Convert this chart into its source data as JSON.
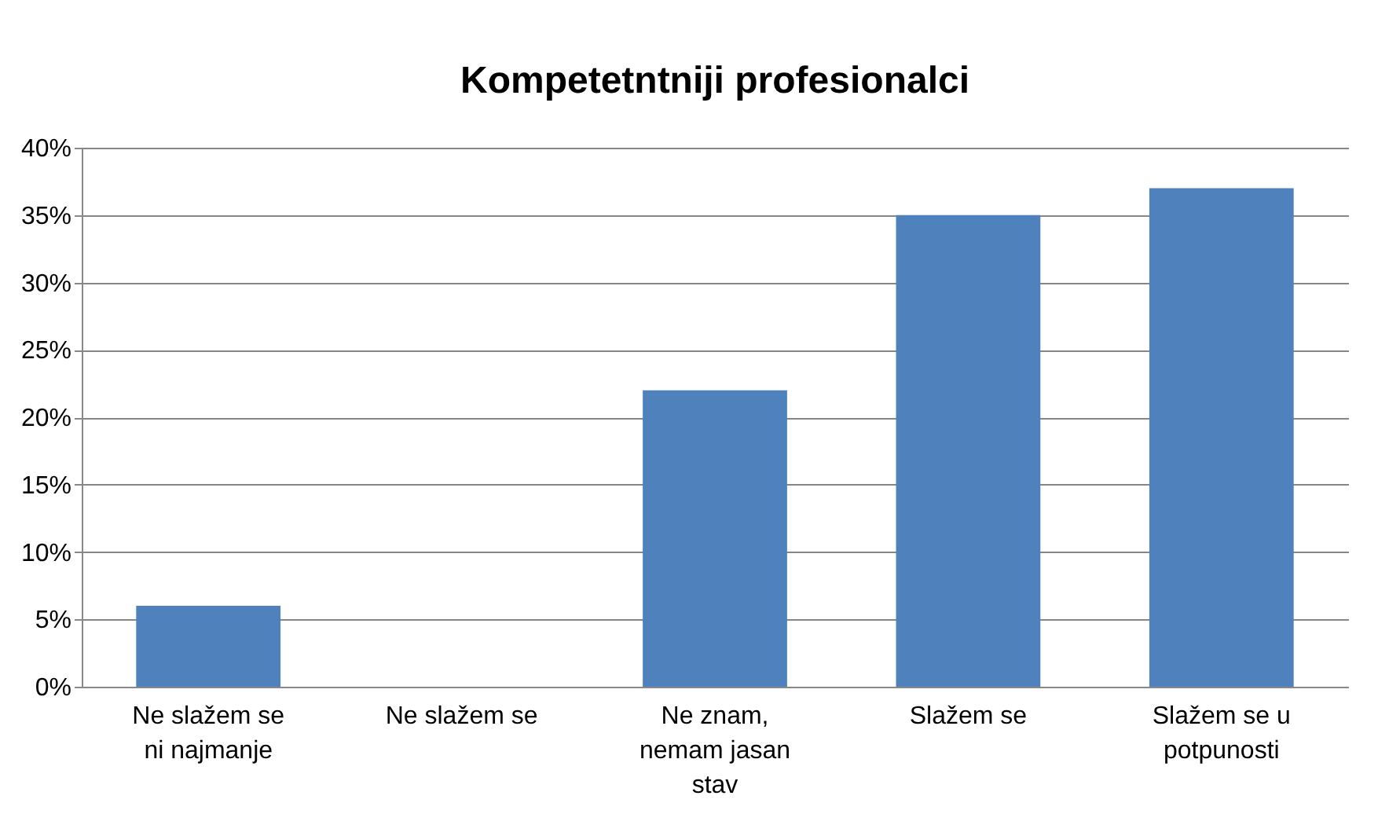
{
  "chart_data": {
    "type": "bar",
    "title": "Kompetetntniji profesionalci",
    "categories": [
      "Ne slažem se ni najmanje",
      "Ne slažem se",
      "Ne znam, nemam jasan stav",
      "Slažem se",
      "Slažem se u potpunosti"
    ],
    "values": [
      6,
      0,
      22,
      35,
      37
    ],
    "color": "#4f81bd",
    "ylim": [
      0,
      40
    ],
    "yticks": [
      {
        "value": 0,
        "label": "0%"
      },
      {
        "value": 5,
        "label": "5%"
      },
      {
        "value": 10,
        "label": "10%"
      },
      {
        "value": 15,
        "label": "15%"
      },
      {
        "value": 20,
        "label": "20%"
      },
      {
        "value": 25,
        "label": "25%"
      },
      {
        "value": 30,
        "label": "30%"
      },
      {
        "value": 35,
        "label": "35%"
      },
      {
        "value": 40,
        "label": "40%"
      }
    ],
    "grid": "y"
  }
}
